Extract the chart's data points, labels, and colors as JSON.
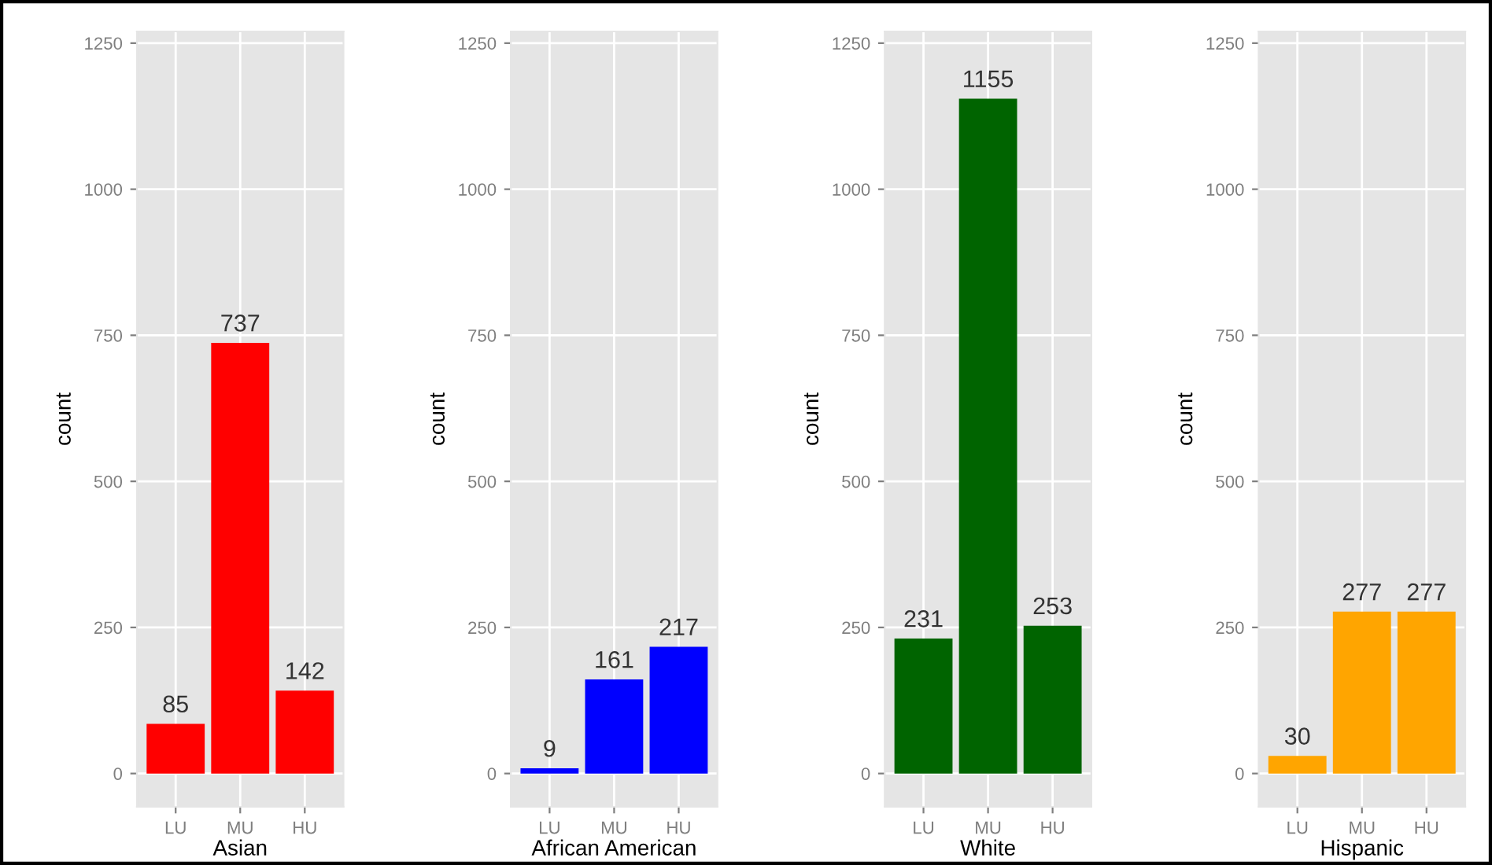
{
  "chart_data": [
    {
      "type": "bar",
      "categories": [
        "LU",
        "MU",
        "HU"
      ],
      "values": [
        85,
        737,
        142
      ],
      "color": "#ff0000",
      "xlabel": "Asian",
      "ylabel": "count",
      "ylim": [
        -57,
        1270
      ],
      "yticks": [
        0,
        250,
        500,
        750,
        1000,
        1250
      ],
      "grid": true,
      "data_labels": true
    },
    {
      "type": "bar",
      "categories": [
        "LU",
        "MU",
        "HU"
      ],
      "values": [
        9,
        161,
        217
      ],
      "color": "#0000ff",
      "xlabel": "African American",
      "ylabel": "count",
      "ylim": [
        -57,
        1270
      ],
      "yticks": [
        0,
        250,
        500,
        750,
        1000,
        1250
      ],
      "grid": true,
      "data_labels": true
    },
    {
      "type": "bar",
      "categories": [
        "LU",
        "MU",
        "HU"
      ],
      "values": [
        231,
        1155,
        253
      ],
      "color": "#006400",
      "xlabel": "White",
      "ylabel": "count",
      "ylim": [
        -57,
        1270
      ],
      "yticks": [
        0,
        250,
        500,
        750,
        1000,
        1250
      ],
      "grid": true,
      "data_labels": true
    },
    {
      "type": "bar",
      "categories": [
        "LU",
        "MU",
        "HU"
      ],
      "values": [
        30,
        277,
        277
      ],
      "color": "#ffa500",
      "xlabel": "Hispanic",
      "ylabel": "count",
      "ylim": [
        -57,
        1270
      ],
      "yticks": [
        0,
        250,
        500,
        750,
        1000,
        1250
      ],
      "grid": true,
      "data_labels": true
    }
  ]
}
